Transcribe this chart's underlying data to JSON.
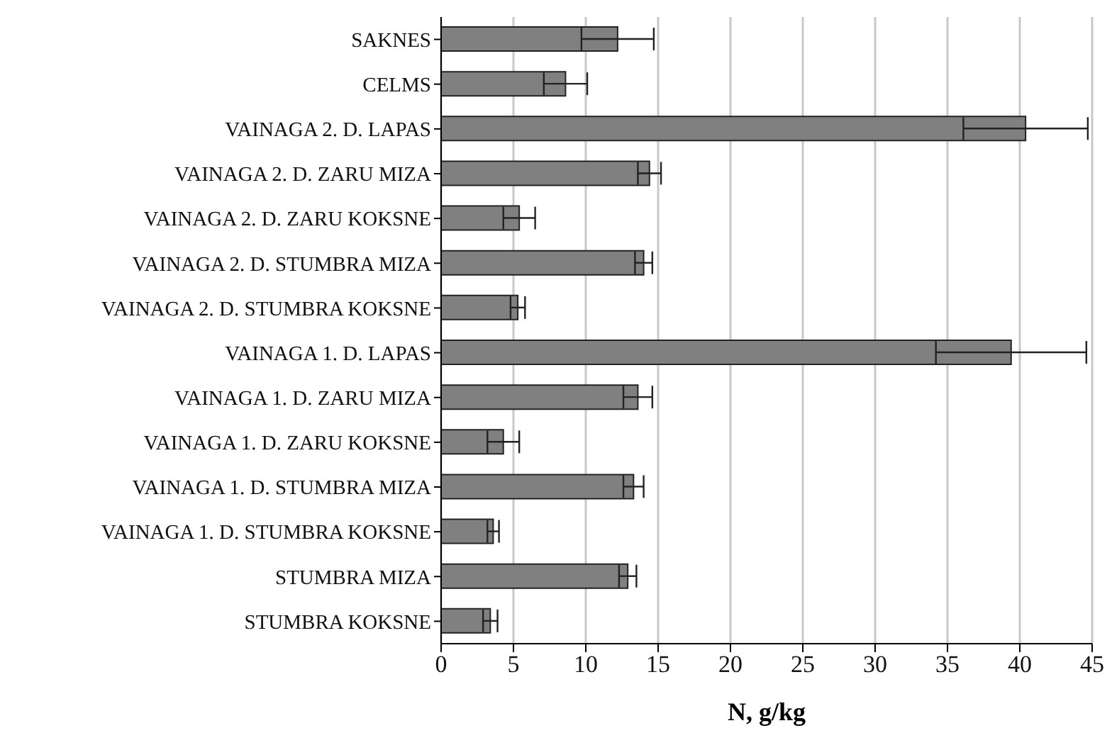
{
  "chart_data": {
    "type": "bar",
    "orientation": "horizontal",
    "xlabel": "N, g/kg",
    "categories": [
      "SAKNES",
      "CELMS",
      "VAINAGA 2. D. LAPAS",
      "VAINAGA 2. D. ZARU MIZA",
      "VAINAGA 2. D. ZARU KOKSNE",
      "VAINAGA 2. D. STUMBRA MIZA",
      "VAINAGA 2. D. STUMBRA KOKSNE",
      "VAINAGA 1. D. LAPAS",
      "VAINAGA 1. D. ZARU MIZA",
      "VAINAGA 1. D. ZARU KOKSNE",
      "VAINAGA 1. D. STUMBRA MIZA",
      "VAINAGA 1. D. STUMBRA KOKSNE",
      "STUMBRA MIZA",
      "STUMBRA KOKSNE"
    ],
    "values": [
      12.2,
      8.6,
      40.4,
      14.4,
      5.4,
      14.0,
      5.3,
      39.4,
      13.6,
      4.3,
      13.3,
      3.6,
      12.9,
      3.4
    ],
    "errors": [
      2.5,
      1.5,
      4.3,
      0.8,
      1.1,
      0.6,
      0.5,
      5.2,
      1.0,
      1.1,
      0.7,
      0.4,
      0.6,
      0.5
    ],
    "color": "#808080",
    "xlim": [
      0,
      45
    ],
    "xticks": [
      0,
      5,
      10,
      15,
      20,
      25,
      30,
      35,
      40,
      45
    ],
    "grid": "x",
    "legend": false
  }
}
